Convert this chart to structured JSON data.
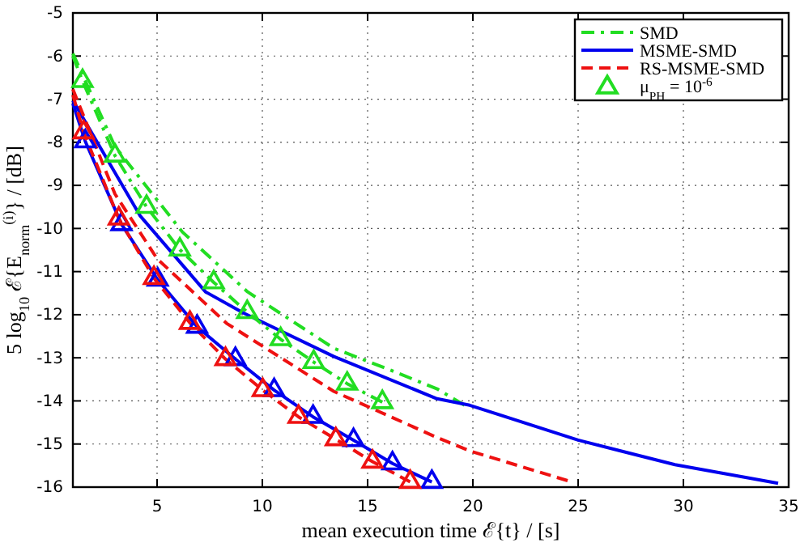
{
  "chart_data": {
    "type": "line",
    "xlabel": "mean execution time ℰ{t} / [s]",
    "ylabel": "5 log$_{10}$ ℰ{E$_{norm}$$^{(i)}$} / [dB]",
    "xlim": [
      1,
      35
    ],
    "ylim": [
      -16,
      -5
    ],
    "xticks": [
      5,
      10,
      15,
      20,
      25,
      30,
      35
    ],
    "yticks": [
      -5,
      -6,
      -7,
      -8,
      -9,
      -10,
      -11,
      -12,
      -13,
      -14,
      -15,
      -16
    ],
    "grid": true,
    "legend": "top right",
    "series": [
      {
        "name": "SMD",
        "line_style": "dashdot",
        "marker": "none",
        "color": "#22dd22",
        "x": [
          1,
          3,
          6.2,
          9.3,
          13.4,
          16,
          18.3,
          19.6
        ],
        "values": [
          -5.94,
          -8.1,
          -10.08,
          -11.47,
          -12.78,
          -13.27,
          -13.72,
          -14.1
        ]
      },
      {
        "name": "MSME-SMD",
        "line_style": "solid",
        "marker": "none",
        "color": "#0000ee",
        "x": [
          1,
          4.2,
          7.3,
          9.1,
          13.4,
          18.3,
          19.85,
          25,
          29.6,
          34.5
        ],
        "values": [
          -7.03,
          -9.71,
          -11.47,
          -11.96,
          -12.97,
          -13.95,
          -14.1,
          -14.91,
          -15.48,
          -15.91
        ]
      },
      {
        "name": "RS-MSME-SMD",
        "line_style": "dashed",
        "marker": "none",
        "color": "#ee1111",
        "x": [
          1,
          3,
          5,
          8.3,
          13.4,
          18.3,
          19.85,
          24.5
        ],
        "values": [
          -6.77,
          -9.2,
          -10.7,
          -12.2,
          -13.78,
          -14.85,
          -15.16,
          -15.85
        ]
      },
      {
        "type": "line",
        "line_style": "dashdot",
        "marker": "none",
        "color": "#22dd22",
        "x": [
          1,
          1.46,
          3.0,
          4.5,
          6.08,
          7.69,
          9.28,
          10.87,
          12.44,
          14.03,
          15.7
        ],
        "values": [
          -6.0,
          -6.58,
          -8.31,
          -9.5,
          -10.49,
          -11.25,
          -11.94,
          -12.57,
          -13.1,
          -13.6,
          -14.03
        ]
      },
      {
        "type": "line",
        "line_style": "solid",
        "marker": "none",
        "color": "#0000ee",
        "x": [
          1,
          1.59,
          3.31,
          5.03,
          6.9,
          8.72,
          10.56,
          12.41,
          14.33,
          16.18,
          18.05
        ],
        "values": [
          -7.1,
          -7.98,
          -9.9,
          -11.19,
          -12.28,
          -13.03,
          -13.75,
          -14.37,
          -14.91,
          -15.45,
          -15.88
        ]
      },
      {
        "type": "line",
        "line_style": "dashed",
        "marker": "none",
        "color": "#ee1111",
        "x": [
          1,
          1.51,
          3.18,
          4.85,
          6.56,
          8.25,
          10.02,
          11.72,
          13.49,
          15.23,
          17.02
        ],
        "values": [
          -6.9,
          -7.77,
          -9.77,
          -11.15,
          -12.19,
          -13.03,
          -13.75,
          -14.37,
          -14.89,
          -15.41,
          -15.88
        ]
      },
      {
        "name": "μ$_{PH}$ = 10$^{-6}$",
        "type": "scatter",
        "marker": "triangle",
        "color": "#22dd22",
        "x": [
          1.46,
          3.0,
          4.5,
          6.08,
          7.69,
          9.28,
          10.87,
          12.44,
          14.03,
          15.7
        ],
        "values": [
          -6.58,
          -8.31,
          -9.5,
          -10.49,
          -11.25,
          -11.94,
          -12.57,
          -13.1,
          -13.6,
          -14.03
        ]
      },
      {
        "type": "scatter",
        "marker": "triangle",
        "color": "#0000ee",
        "x": [
          1.59,
          3.31,
          5.03,
          6.9,
          8.72,
          10.56,
          12.41,
          14.33,
          16.18,
          18.05
        ],
        "values": [
          -7.98,
          -9.9,
          -11.19,
          -12.28,
          -13.03,
          -13.75,
          -14.37,
          -14.91,
          -15.45,
          -15.88
        ]
      },
      {
        "type": "scatter",
        "marker": "triangle",
        "color": "#ee1111",
        "x": [
          1.51,
          3.18,
          4.85,
          6.56,
          8.25,
          10.02,
          11.72,
          13.49,
          15.23,
          17.02
        ],
        "values": [
          -7.77,
          -9.77,
          -11.15,
          -12.19,
          -13.03,
          -13.75,
          -14.37,
          -14.89,
          -15.41,
          -15.88
        ]
      }
    ]
  }
}
